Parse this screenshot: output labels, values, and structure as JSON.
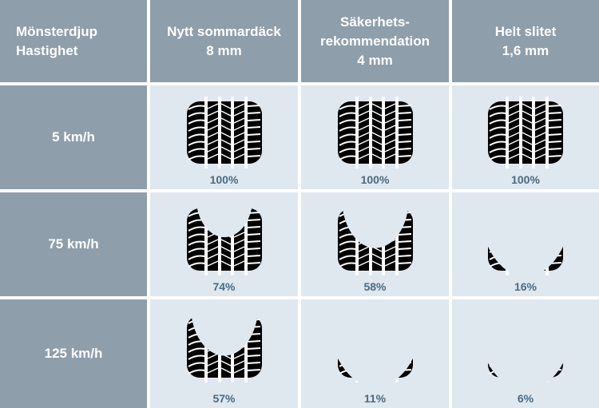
{
  "header": {
    "corner": [
      "Mönsterdjup",
      "Hastighet"
    ],
    "columns": [
      {
        "lines": [
          "Nytt sommardäck",
          "8 mm"
        ]
      },
      {
        "lines": [
          "Säkerhets-",
          "rekommendation",
          "4 mm"
        ]
      },
      {
        "lines": [
          "Helt slitet",
          "1,6 mm"
        ]
      }
    ]
  },
  "rows": [
    {
      "speed": "5 km/h",
      "cells": [
        {
          "label": "100%",
          "value": 100
        },
        {
          "label": "100%",
          "value": 100
        },
        {
          "label": "100%",
          "value": 100
        }
      ]
    },
    {
      "speed": "75 km/h",
      "cells": [
        {
          "label": "74%",
          "value": 74
        },
        {
          "label": "58%",
          "value": 58
        },
        {
          "label": "16%",
          "value": 16
        }
      ]
    },
    {
      "speed": "125 km/h",
      "cells": [
        {
          "label": "57%",
          "value": 57
        },
        {
          "label": "11%",
          "value": 11
        },
        {
          "label": "6%",
          "value": 6
        }
      ]
    }
  ],
  "colors": {
    "header_bg": "#8e9eab",
    "cell_bg": "#dfe7ef",
    "percent_text": "#4a6b80",
    "tread": "#000000"
  }
}
